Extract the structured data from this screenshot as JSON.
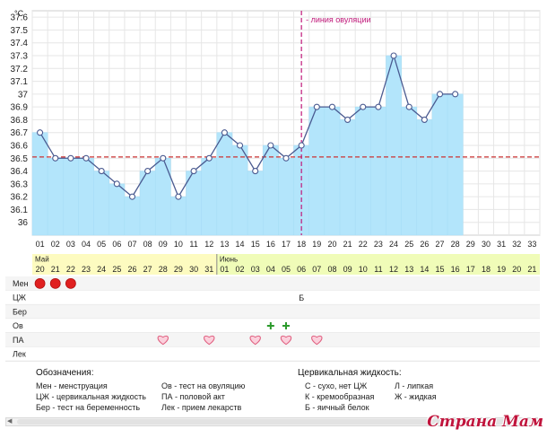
{
  "chart_data": {
    "type": "line",
    "ylabel": "°C",
    "y_ticks": [
      "37.6",
      "37.5",
      "37.4",
      "37.3",
      "37.2",
      "37.1",
      "37",
      "36.9",
      "36.8",
      "36.7",
      "36.6",
      "36.5",
      "36.4",
      "36.3",
      "36.2",
      "36.1",
      "36"
    ],
    "ylim": [
      35.9,
      37.65
    ],
    "cycle_days": [
      "01",
      "02",
      "03",
      "04",
      "05",
      "06",
      "07",
      "08",
      "09",
      "10",
      "11",
      "12",
      "13",
      "14",
      "15",
      "16",
      "17",
      "18",
      "19",
      "20",
      "21",
      "22",
      "23",
      "24",
      "25",
      "26",
      "27",
      "28",
      "29",
      "30",
      "31",
      "32",
      "33"
    ],
    "temperatures": [
      36.7,
      36.5,
      36.5,
      36.5,
      36.4,
      36.3,
      36.2,
      36.4,
      36.5,
      36.2,
      36.4,
      36.5,
      36.7,
      36.6,
      36.4,
      36.6,
      36.5,
      36.6,
      36.9,
      36.9,
      36.8,
      36.9,
      36.9,
      37.3,
      36.9,
      36.8,
      37.0,
      37.0
    ],
    "coverline": 36.51,
    "ovulation_day_index": 17.5,
    "ovulation_label": "- линия овуляции",
    "grid": true,
    "colors": {
      "bars": "#b3e5fb",
      "line": "#4a5a90",
      "coverline": "#cc3333",
      "ovulation": "#c0187a"
    }
  },
  "calendar": {
    "months": [
      {
        "label": "Май",
        "start_index": 0
      },
      {
        "label": "Июнь",
        "start_index": 12
      }
    ],
    "dates": [
      "20",
      "21",
      "22",
      "23",
      "24",
      "25",
      "26",
      "27",
      "28",
      "29",
      "30",
      "31",
      "01",
      "02",
      "03",
      "04",
      "05",
      "06",
      "07",
      "08",
      "09",
      "10",
      "11",
      "12",
      "13",
      "14",
      "15",
      "16",
      "17",
      "18",
      "19",
      "20",
      "21"
    ],
    "row_colors": {
      "may": "#fdfbc0",
      "june": "#f0fcb8"
    }
  },
  "rows": [
    {
      "label": "Мен",
      "marks": [
        {
          "day": 0,
          "kind": "dot"
        },
        {
          "day": 1,
          "kind": "dot"
        },
        {
          "day": 2,
          "kind": "dot"
        }
      ]
    },
    {
      "label": "ЦЖ",
      "marks": [
        {
          "day": 17,
          "kind": "text",
          "text": "Б"
        }
      ]
    },
    {
      "label": "Бер",
      "marks": []
    },
    {
      "label": "Ов",
      "marks": [
        {
          "day": 15,
          "kind": "plus"
        },
        {
          "day": 16,
          "kind": "plus"
        }
      ]
    },
    {
      "label": "ПА",
      "marks": [
        {
          "day": 8,
          "kind": "heart"
        },
        {
          "day": 11,
          "kind": "heart"
        },
        {
          "day": 14,
          "kind": "heart"
        },
        {
          "day": 16,
          "kind": "heart"
        },
        {
          "day": 18,
          "kind": "heart"
        }
      ]
    },
    {
      "label": "Лек",
      "marks": []
    }
  ],
  "legend": {
    "title_left": "Обозначения:",
    "title_right": "Цервикальная жидкость:",
    "col1": [
      "Мен - менструация",
      "ЦЖ - цервикальная жидкость",
      "Бер - тест на беременность"
    ],
    "col2": [
      "Ов - тест на овуляцию",
      "ПА - половой акт",
      "Лек - прием лекарств"
    ],
    "col3": [
      "С - сухо, нет ЦЖ",
      "К - кремообразная",
      "Б - яичный белок"
    ],
    "col4": [
      "Л - липкая",
      "Ж - жидкая"
    ]
  },
  "watermark": "Страна Мам"
}
